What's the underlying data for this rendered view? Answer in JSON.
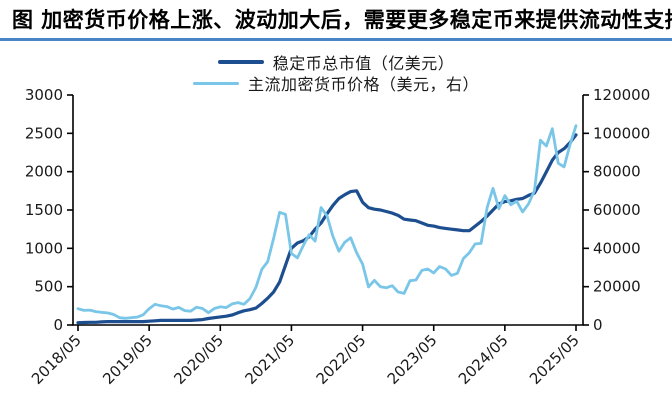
{
  "title": "图  加密货币价格上涨、波动加大后，需要更多稳定币来提供流动性支持",
  "accent_color": "#4a86c6",
  "chart_data": {
    "type": "line",
    "title": "加密货币价格上涨、波动加大后，需要更多稳定币来提供流动性支持",
    "grid": false,
    "legend_position": "top-center",
    "x_tick_labels": [
      "2018/05",
      "2019/05",
      "2020/05",
      "2021/05",
      "2022/05",
      "2023/05",
      "2024/05",
      "2025/05"
    ],
    "x_tick_month_indices": [
      0,
      12,
      24,
      36,
      48,
      60,
      72,
      84
    ],
    "left_axis": {
      "label": "亿美元",
      "ticks": [
        0,
        500,
        1000,
        1500,
        2000,
        2500,
        3000
      ],
      "min": 0,
      "max": 3000
    },
    "right_axis": {
      "label": "美元",
      "ticks": [
        0,
        20000,
        40000,
        60000,
        80000,
        100000,
        120000
      ],
      "min": 0,
      "max": 120000
    },
    "series": [
      {
        "name": "稳定币总市值（亿美元）",
        "axis": "left",
        "color": "#1d4e8f",
        "stroke_width": 3.2,
        "values": [
          30,
          32,
          35,
          35,
          40,
          45,
          45,
          45,
          45,
          45,
          45,
          45,
          50,
          55,
          60,
          60,
          60,
          60,
          60,
          60,
          65,
          70,
          85,
          95,
          105,
          115,
          130,
          160,
          185,
          200,
          220,
          280,
          350,
          430,
          560,
          780,
          1000,
          1070,
          1100,
          1150,
          1250,
          1330,
          1450,
          1560,
          1650,
          1700,
          1740,
          1750,
          1600,
          1530,
          1510,
          1500,
          1480,
          1460,
          1430,
          1380,
          1370,
          1360,
          1330,
          1300,
          1290,
          1270,
          1260,
          1250,
          1240,
          1230,
          1230,
          1290,
          1350,
          1420,
          1500,
          1580,
          1610,
          1620,
          1640,
          1650,
          1690,
          1720,
          1850,
          2000,
          2150,
          2250,
          2300,
          2380,
          2480
        ]
      },
      {
        "name": "主流加密货币价格（美元，右）",
        "axis": "right",
        "color": "#79c6e8",
        "stroke_width": 2.8,
        "values": [
          8500,
          7600,
          7750,
          7000,
          6600,
          6300,
          5500,
          3800,
          3500,
          3800,
          4100,
          5300,
          8500,
          10800,
          10000,
          9600,
          8300,
          9200,
          7500,
          7200,
          9300,
          8600,
          6400,
          8600,
          9500,
          9100,
          11000,
          11700,
          10800,
          13800,
          19600,
          29000,
          33100,
          45200,
          58800,
          57700,
          37300,
          35000,
          41500,
          47100,
          43800,
          61300,
          57000,
          46200,
          38500,
          43200,
          45500,
          37700,
          31800,
          19900,
          23300,
          20000,
          19400,
          20500,
          17200,
          16500,
          23100,
          23500,
          28500,
          29200,
          27200,
          30500,
          29200,
          25900,
          27000,
          34700,
          37700,
          42300,
          42600,
          61200,
          71300,
          60600,
          67500,
          62700,
          64600,
          59000,
          63300,
          70200,
          96400,
          93400,
          102400,
          84400,
          82500,
          94200,
          104000
        ]
      }
    ]
  }
}
